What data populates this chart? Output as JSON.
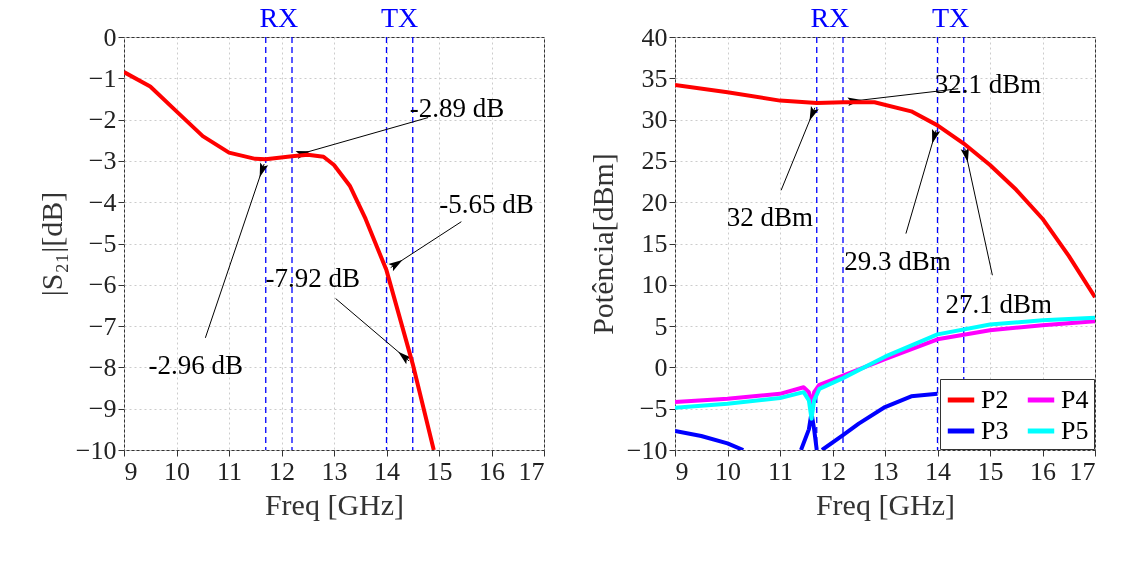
{
  "chart_data": [
    {
      "type": "line",
      "xlabel": "Freq [GHz]",
      "ylabel": "|S₂₁|[dB]",
      "xlim": [
        9,
        17
      ],
      "ylim": [
        -10,
        0
      ],
      "xticks": [
        9,
        10,
        11,
        12,
        13,
        14,
        15,
        16,
        17
      ],
      "yticks": [
        -10,
        -9,
        -8,
        -7,
        -6,
        -5,
        -4,
        -3,
        -2,
        -1,
        0
      ],
      "grid": true,
      "legend": false,
      "series": [
        {
          "color": "#ff0000",
          "x": [
            9,
            9.5,
            10,
            10.5,
            11,
            11.5,
            11.7,
            12.2,
            12.5,
            12.8,
            13,
            13.3,
            13.6,
            14,
            14.5,
            14.9
          ],
          "values": [
            -0.85,
            -1.2,
            -1.8,
            -2.4,
            -2.8,
            -2.95,
            -2.96,
            -2.89,
            -2.85,
            -2.9,
            -3.1,
            -3.6,
            -4.4,
            -5.65,
            -7.92,
            -10
          ]
        }
      ],
      "ref_lines": [
        {
          "axis": "x",
          "value": 11.7,
          "color": "#0000ff",
          "line_style": "dashed"
        },
        {
          "axis": "x",
          "value": 12.2,
          "color": "#0000ff",
          "line_style": "dashed"
        },
        {
          "axis": "x",
          "value": 14,
          "color": "#0000ff",
          "line_style": "dashed"
        },
        {
          "axis": "x",
          "value": 14.5,
          "color": "#0000ff",
          "line_style": "dashed"
        }
      ],
      "annotations": [
        "RX",
        "TX",
        {
          "text": "-2.96 dB",
          "x": 11.7,
          "y": -2.96
        },
        {
          "text": "-2.89 dB",
          "x": 12.2,
          "y": -2.89
        },
        {
          "text": "-5.65 dB",
          "x": 14,
          "y": -5.65
        },
        {
          "text": "-7.92 dB",
          "x": 14.5,
          "y": -7.92
        }
      ]
    },
    {
      "type": "line",
      "xlabel": "Freq [GHz]",
      "ylabel": "Potência[dBm]",
      "xlim": [
        9,
        17
      ],
      "ylim": [
        -10,
        40
      ],
      "xticks": [
        9,
        10,
        11,
        12,
        13,
        14,
        15,
        16,
        17
      ],
      "yticks": [
        -10,
        -5,
        0,
        5,
        10,
        15,
        20,
        25,
        30,
        35,
        40
      ],
      "grid": true,
      "legend": "bottom right",
      "series": [
        {
          "name": "P2",
          "color": "#ff0000",
          "x": [
            9,
            10,
            11,
            11.7,
            12.2,
            12.8,
            13.5,
            14,
            14.5,
            15,
            15.5,
            16,
            16.5,
            17
          ],
          "values": [
            34.2,
            33.3,
            32.3,
            32,
            32.1,
            32.1,
            31,
            29.3,
            27.1,
            24.5,
            21.5,
            18,
            13.5,
            8.5
          ]
        },
        {
          "name": "P3",
          "color": "#0000ff",
          "x": [
            9,
            9.5,
            10,
            10.3,
            10.35,
            11.35,
            11.4,
            11.55,
            11.6,
            11.65,
            11.7,
            11.75,
            11.8,
            12.2,
            12.5,
            13,
            13.5,
            14
          ],
          "values": [
            -7.7,
            -8.3,
            -9.2,
            -10,
            null,
            null,
            -10,
            -7.5,
            -5.5,
            -7.5,
            -10,
            null,
            -10,
            -8.2,
            -6.8,
            -4.8,
            -3.5,
            -3.2
          ]
        },
        {
          "name": "P4",
          "color": "#ff00ff",
          "x": [
            9,
            10,
            11,
            11.45,
            11.55,
            11.6,
            11.65,
            11.75,
            12.2,
            13,
            14,
            15,
            16,
            17
          ],
          "values": [
            -4.2,
            -3.8,
            -3.2,
            -2.4,
            -3,
            -4.5,
            -3,
            -2.1,
            -1,
            1,
            3.4,
            4.5,
            5.1,
            5.6
          ]
        },
        {
          "name": "P5",
          "color": "#00ffff",
          "x": [
            9,
            10,
            11,
            11.45,
            11.55,
            11.6,
            11.65,
            11.75,
            12.2,
            13,
            14,
            15,
            16,
            17
          ],
          "values": [
            -4.9,
            -4.4,
            -3.7,
            -3,
            -4,
            -6.2,
            -4,
            -2.6,
            -1.3,
            1.3,
            4,
            5.2,
            5.7,
            6
          ]
        }
      ],
      "ref_lines": [
        {
          "axis": "x",
          "value": 11.7,
          "color": "#0000ff",
          "line_style": "dashed"
        },
        {
          "axis": "x",
          "value": 12.2,
          "color": "#0000ff",
          "line_style": "dashed"
        },
        {
          "axis": "x",
          "value": 14,
          "color": "#0000ff",
          "line_style": "dashed"
        },
        {
          "axis": "x",
          "value": 14.5,
          "color": "#0000ff",
          "line_style": "dashed"
        }
      ],
      "annotations": [
        "RX",
        "TX",
        {
          "text": "32 dBm",
          "x": 11.7,
          "y": 32
        },
        {
          "text": "32.1 dBm",
          "x": 12.2,
          "y": 32.1
        },
        {
          "text": "29.3 dBm",
          "x": 14,
          "y": 29.3
        },
        {
          "text": "27.1 dBm",
          "x": 14.5,
          "y": 27.1
        }
      ]
    }
  ]
}
